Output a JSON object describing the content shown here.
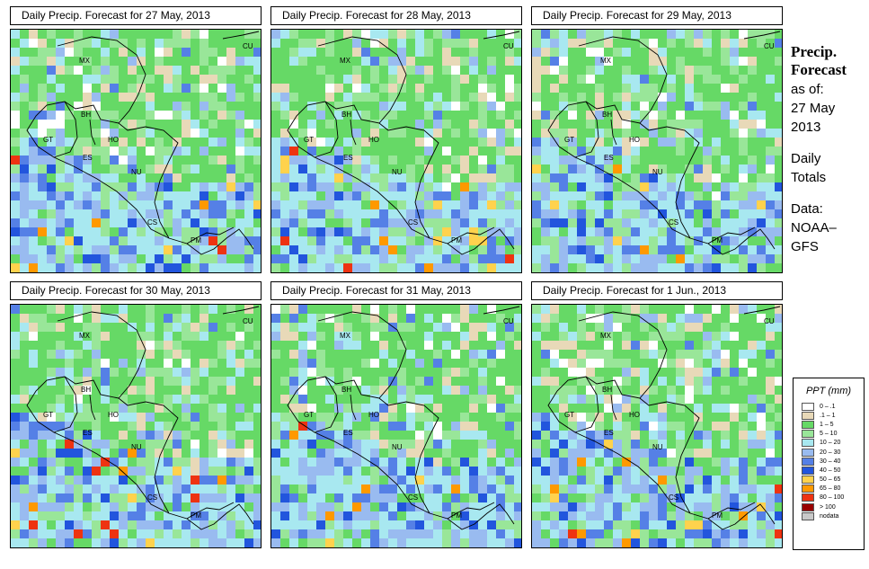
{
  "panels": [
    {
      "title": "Daily Precip. Forecast for  27 May, 2013",
      "date": "27 May, 2013",
      "seed": 11
    },
    {
      "title": "Daily Precip. Forecast for  28 May, 2013",
      "date": "28 May, 2013",
      "seed": 23
    },
    {
      "title": "Daily Precip. Forecast for  29 May, 2013",
      "date": "29 May, 2013",
      "seed": 37
    },
    {
      "title": "Daily Precip. Forecast for  30 May, 2013",
      "date": "30 May, 2013",
      "seed": 41
    },
    {
      "title": "Daily Precip. Forecast for  31 May, 2013",
      "date": "31 May, 2013",
      "seed": 53
    },
    {
      "title": "Daily Precip. Forecast for  1 Jun., 2013",
      "date": "1 Jun., 2013",
      "seed": 67
    }
  ],
  "map_labels": [
    "CU",
    "MX",
    "BH",
    "GT",
    "HO",
    "ES",
    "NU",
    "CS",
    "PM"
  ],
  "sidebar": {
    "title_line1": "Precip.",
    "title_line2": "Forecast",
    "asof_line1": "as of:",
    "asof_line2": "27 May",
    "asof_line3": "2013",
    "totals_line1": "Daily",
    "totals_line2": "Totals",
    "data_line1": "Data:",
    "data_line2": "NOAA–",
    "data_line3": "GFS"
  },
  "legend": {
    "title": "PPT (mm)",
    "items": [
      {
        "label": "0 – .1",
        "color": "#ffffff"
      },
      {
        "label": ".1 – 1",
        "color": "#e8d9b8"
      },
      {
        "label": "1 – 5",
        "color": "#66d966"
      },
      {
        "label": "5 – 10",
        "color": "#99e699"
      },
      {
        "label": "10 – 20",
        "color": "#a8e8f0"
      },
      {
        "label": "20 – 30",
        "color": "#99bbf0"
      },
      {
        "label": "30 – 40",
        "color": "#5580e6"
      },
      {
        "label": "40 – 50",
        "color": "#2255dd"
      },
      {
        "label": "50 – 65",
        "color": "#ffd24d"
      },
      {
        "label": "65 – 80",
        "color": "#ff9900"
      },
      {
        "label": "80 – 100",
        "color": "#ee3311"
      },
      {
        "label": "> 100",
        "color": "#990000"
      },
      {
        "label": "nodata",
        "color": "#c8c8c8"
      }
    ]
  }
}
